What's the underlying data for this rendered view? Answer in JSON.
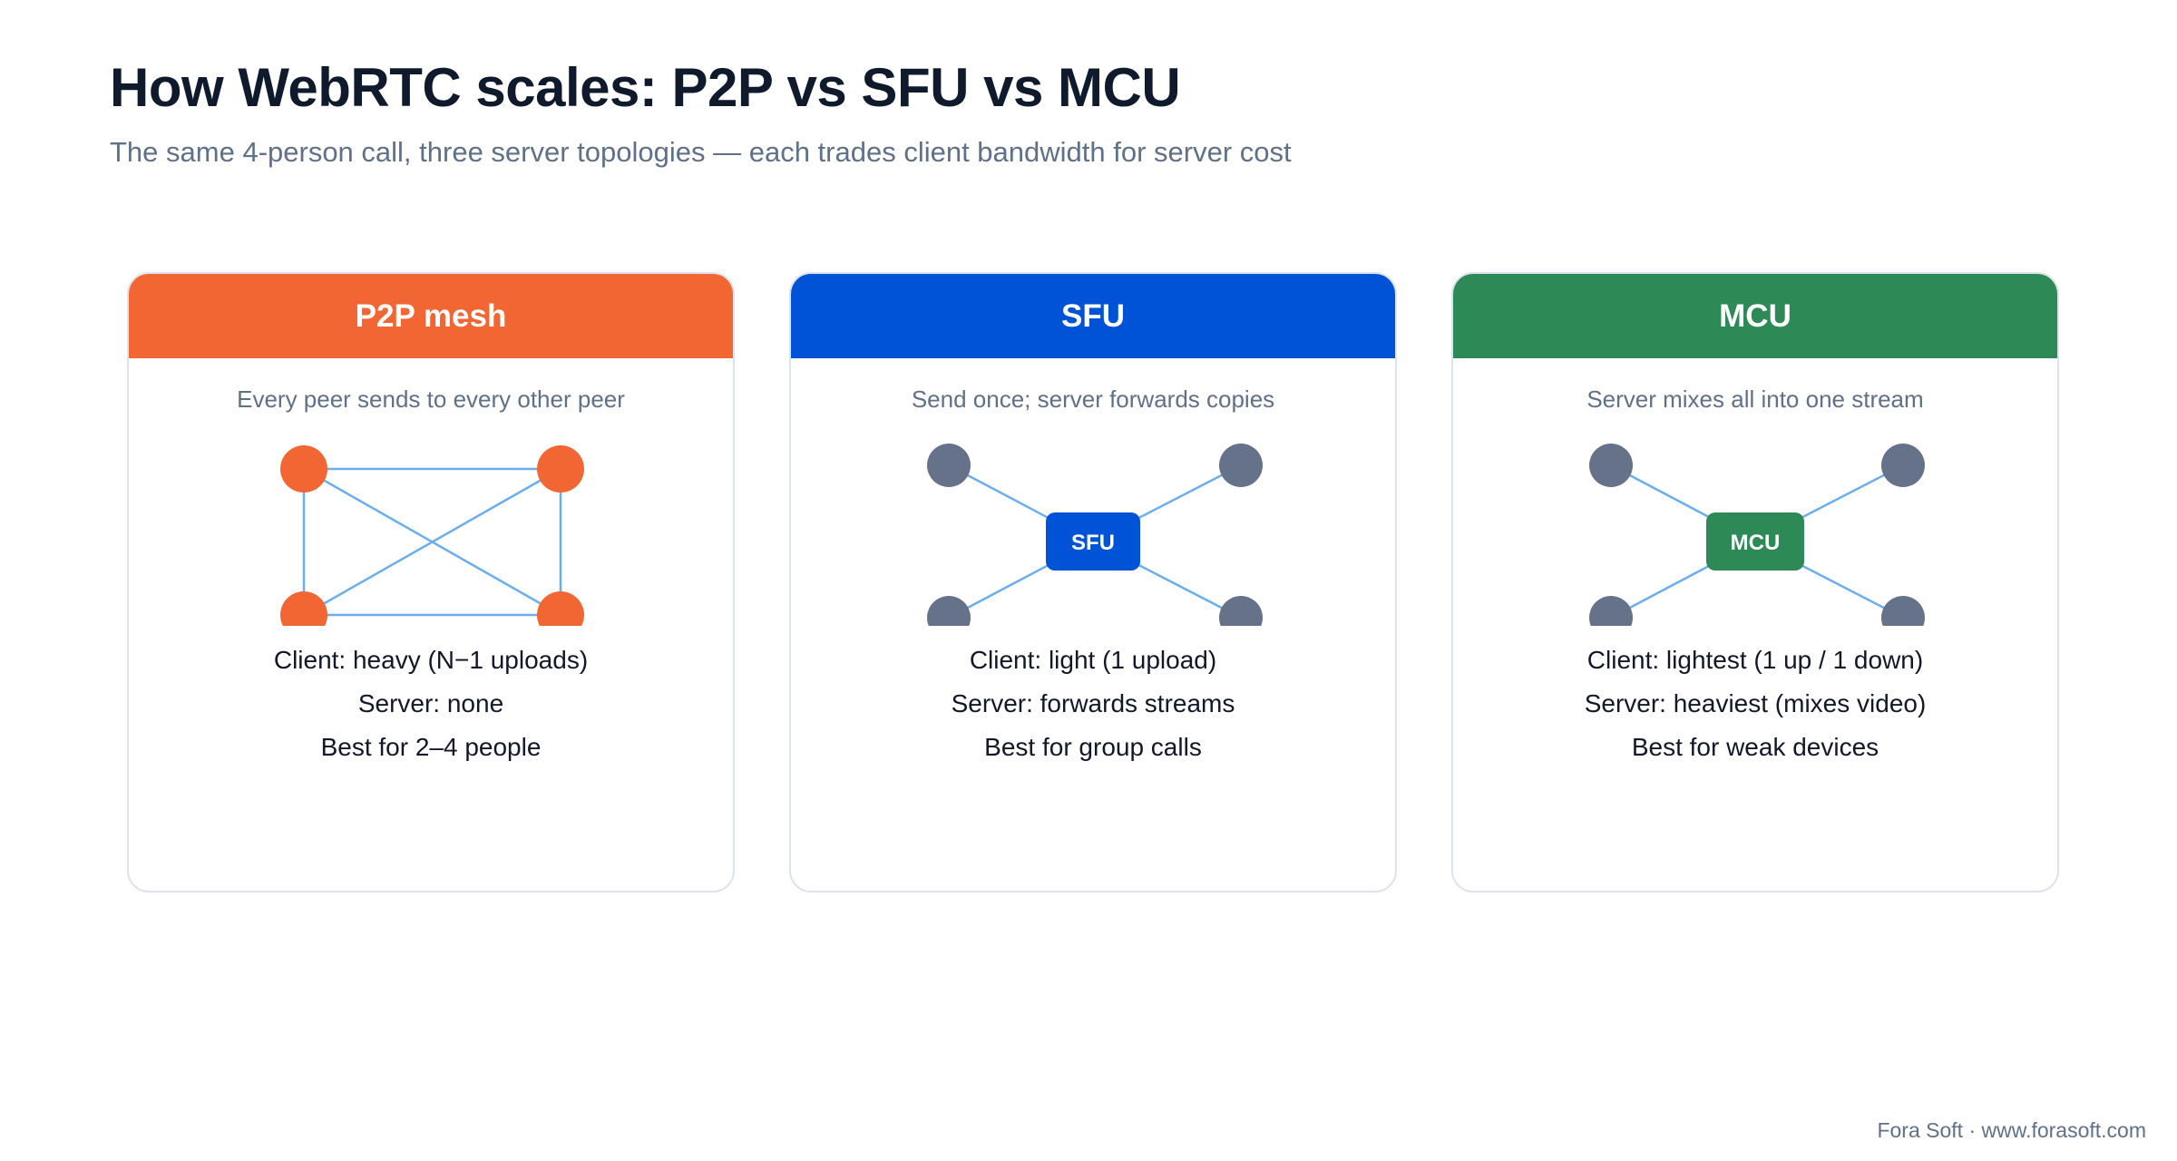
{
  "title": "How WebRTC scales: P2P vs SFU vs MCU",
  "subtitle": "The same 4-person call, three server topologies — each trades client bandwidth for server cost",
  "cards": [
    {
      "header": "P2P mesh",
      "color": "#f26633",
      "description": "Every peer sends to every other peer",
      "lines": [
        "Client: heavy (N−1 uploads)",
        "Server: none",
        "Best for 2–4 people"
      ]
    },
    {
      "header": "SFU",
      "color": "#0052d6",
      "description": "Send once; server forwards copies",
      "hub_label": "SFU",
      "lines": [
        "Client: light (1 upload)",
        "Server: forwards streams",
        "Best for group calls"
      ]
    },
    {
      "header": "MCU",
      "color": "#2d8a56",
      "description": "Server mixes all into one stream",
      "hub_label": "MCU",
      "lines": [
        "Client: lightest (1 up / 1 down)",
        "Server: heaviest (mixes video)",
        "Best for weak devices"
      ]
    }
  ],
  "colors": {
    "edge": "#6aaef0",
    "client_node": "#65728a",
    "peer_node": "#f26633"
  },
  "footer": "Fora Soft · www.forasoft.com"
}
